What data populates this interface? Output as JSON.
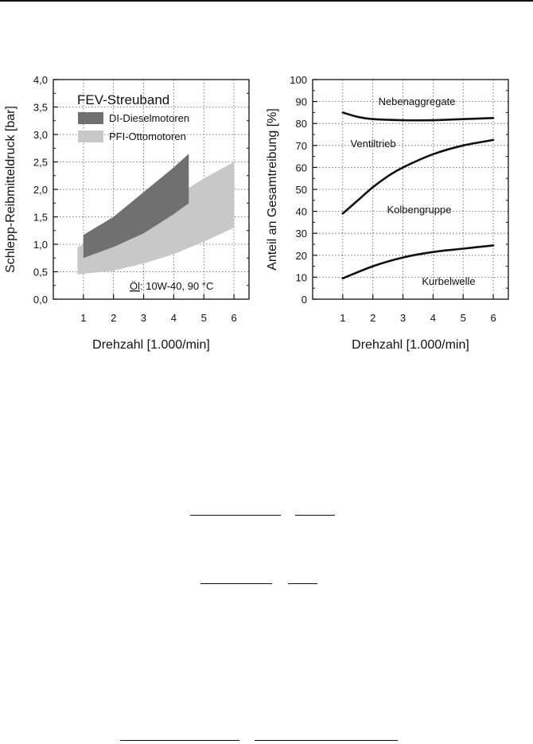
{
  "chart_data": [
    {
      "type": "area",
      "xlabel": "Drehzahl [1.000/min]",
      "ylabel": "Schlepp-Reibmitteldruck [bar]",
      "xlim": [
        0,
        6.5
      ],
      "ylim": [
        0.0,
        4.0
      ],
      "x_ticks": [
        "1",
        "2",
        "3",
        "4",
        "5",
        "6"
      ],
      "y_ticks": [
        "0,0",
        "0,5",
        "1,0",
        "1,5",
        "2,0",
        "2,5",
        "3,0",
        "3,5",
        "4,0"
      ],
      "grid": true,
      "legend_title": "FEV-Streuband",
      "legend_position": "top-left",
      "annotation": {
        "underlined": "Öl",
        "rest": ": 10W-40, 90 °C"
      },
      "series": [
        {
          "name": "DI-Dieselmotoren",
          "color": "#707070",
          "upper": [
            [
              1.0,
              1.17
            ],
            [
              2.0,
              1.5
            ],
            [
              3.0,
              1.95
            ],
            [
              4.0,
              2.4
            ],
            [
              4.5,
              2.65
            ]
          ],
          "lower": [
            [
              1.0,
              0.75
            ],
            [
              2.0,
              0.95
            ],
            [
              3.0,
              1.2
            ],
            [
              4.0,
              1.55
            ],
            [
              4.5,
              1.75
            ]
          ]
        },
        {
          "name": "PFI-Ottomotoren",
          "color": "#c8c8c8",
          "upper": [
            [
              0.8,
              0.95
            ],
            [
              2.0,
              1.2
            ],
            [
              3.0,
              1.5
            ],
            [
              4.0,
              1.85
            ],
            [
              5.0,
              2.2
            ],
            [
              6.0,
              2.5
            ]
          ],
          "lower": [
            [
              0.8,
              0.45
            ],
            [
              2.0,
              0.52
            ],
            [
              3.0,
              0.65
            ],
            [
              4.0,
              0.82
            ],
            [
              5.0,
              1.05
            ],
            [
              6.0,
              1.3
            ]
          ]
        }
      ]
    },
    {
      "type": "line",
      "xlabel": "Drehzahl [1.000/min]",
      "ylabel": "Anteil an Gesamtreibung [%]",
      "xlim": [
        0,
        6.5
      ],
      "ylim": [
        0,
        100
      ],
      "x_ticks": [
        "1",
        "2",
        "3",
        "4",
        "5",
        "6"
      ],
      "y_ticks": [
        "0",
        "10",
        "20",
        "30",
        "40",
        "50",
        "60",
        "70",
        "80",
        "90",
        "100"
      ],
      "grid": true,
      "series": [
        {
          "x": [
            1.0,
            1.5,
            2.0,
            3.0,
            4.0,
            5.0,
            6.0
          ],
          "y": [
            85,
            83,
            82,
            81.5,
            81.5,
            82,
            82.5
          ]
        },
        {
          "x": [
            1.0,
            1.5,
            2.0,
            2.5,
            3.0,
            4.0,
            5.0,
            6.0
          ],
          "y": [
            39,
            45,
            51,
            56,
            60,
            66,
            70,
            72.5
          ]
        },
        {
          "x": [
            1.0,
            2.0,
            3.0,
            4.0,
            5.0,
            6.0
          ],
          "y": [
            9.5,
            15,
            19,
            21.5,
            23,
            24.5
          ]
        }
      ],
      "region_labels": [
        "Nebenaggregate",
        "Ventiltrieb",
        "Kolbengruppe",
        "Kurbelwelle"
      ]
    }
  ]
}
